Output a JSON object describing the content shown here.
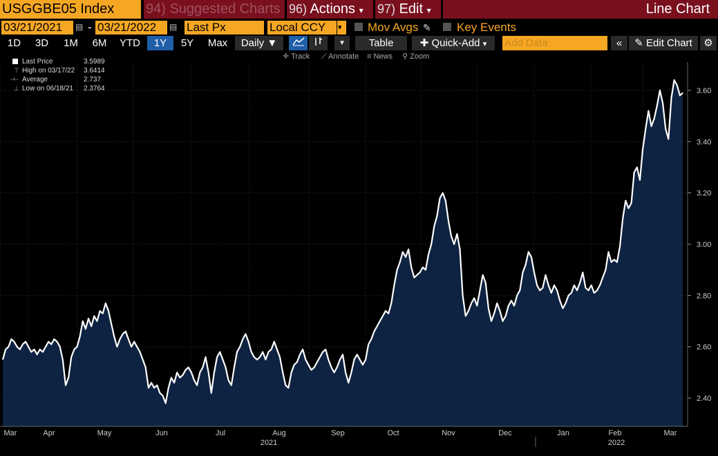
{
  "header": {
    "ticker": "USGGBE05 Index",
    "suggested_num": "94)",
    "suggested": "Suggested Charts",
    "actions_num": "96)",
    "actions": "Actions",
    "edit_num": "97)",
    "edit": "Edit",
    "chart_type": "Line Chart",
    "caret": "▾"
  },
  "controls": {
    "start_date": "03/21/2021",
    "end_date": "03/21/2022",
    "dash": "-",
    "field": "Last Px",
    "currency": "Local CCY",
    "mov_avgs": "Mov Avgs",
    "key_events": "Key Events"
  },
  "toolbar": {
    "periods": [
      "1D",
      "3D",
      "1M",
      "6M",
      "YTD",
      "1Y",
      "5Y",
      "Max"
    ],
    "active_period": "1Y",
    "frequency": "Daily",
    "table": "Table",
    "quick_add": "Quick-Add",
    "add_data_placeholder": "Add Data",
    "edit_chart": "Edit Chart"
  },
  "tools": {
    "track": "Track",
    "annotate": "Annotate",
    "news": "News",
    "zoom": "Zoom"
  },
  "legend": [
    {
      "label": "Last Price",
      "value": "3.5989"
    },
    {
      "label": "High on 03/17/22",
      "value": "3.6414"
    },
    {
      "label": "Average",
      "value": "2.737"
    },
    {
      "label": "Low on 06/18/21",
      "value": "2.3764"
    }
  ],
  "colors": {
    "accent": "#f5a623",
    "header_bg": "#7a0f1e",
    "area_fill": "#0e2342",
    "line": "#ffffff",
    "active_btn": "#1e5fa8"
  },
  "chart_data": {
    "type": "area",
    "title": "",
    "xlabel": "",
    "ylabel": "",
    "x_tick_labels": [
      "Mar",
      "Apr",
      "May",
      "Jun",
      "Jul",
      "Aug",
      "Sep",
      "Oct",
      "Nov",
      "Dec",
      "Jan",
      "Feb",
      "Mar"
    ],
    "x_year_labels": [
      "2021",
      "2022"
    ],
    "y_tick_labels": [
      "2.40",
      "2.60",
      "2.80",
      "3.00",
      "3.20",
      "3.40",
      "3.60"
    ],
    "ylim": [
      2.29,
      3.71
    ],
    "grid": true,
    "legend": "top-left",
    "series": [
      {
        "values": [
          2.55,
          2.59,
          2.6,
          2.63,
          2.62,
          2.6,
          2.59,
          2.61,
          2.62,
          2.6,
          2.58,
          2.59,
          2.57,
          2.59,
          2.58,
          2.6,
          2.62,
          2.61,
          2.63,
          2.62,
          2.6,
          2.55,
          2.45,
          2.48,
          2.56,
          2.59,
          2.6,
          2.64,
          2.7,
          2.67,
          2.71,
          2.68,
          2.72,
          2.7,
          2.74,
          2.73,
          2.77,
          2.74,
          2.69,
          2.64,
          2.6,
          2.63,
          2.65,
          2.66,
          2.63,
          2.6,
          2.62,
          2.6,
          2.58,
          2.55,
          2.52,
          2.44,
          2.46,
          2.44,
          2.45,
          2.42,
          2.41,
          2.38,
          2.44,
          2.48,
          2.46,
          2.5,
          2.48,
          2.49,
          2.51,
          2.52,
          2.5,
          2.47,
          2.45,
          2.5,
          2.52,
          2.56,
          2.5,
          2.42,
          2.5,
          2.56,
          2.58,
          2.55,
          2.52,
          2.47,
          2.45,
          2.52,
          2.58,
          2.6,
          2.63,
          2.65,
          2.62,
          2.58,
          2.56,
          2.55,
          2.56,
          2.58,
          2.55,
          2.58,
          2.59,
          2.62,
          2.59,
          2.56,
          2.5,
          2.45,
          2.44,
          2.5,
          2.53,
          2.54,
          2.57,
          2.59,
          2.55,
          2.53,
          2.51,
          2.52,
          2.54,
          2.56,
          2.58,
          2.59,
          2.55,
          2.52,
          2.5,
          2.52,
          2.55,
          2.57,
          2.5,
          2.46,
          2.5,
          2.55,
          2.57,
          2.55,
          2.53,
          2.55,
          2.61,
          2.63,
          2.66,
          2.68,
          2.7,
          2.72,
          2.74,
          2.73,
          2.77,
          2.84,
          2.9,
          2.93,
          2.97,
          2.95,
          2.98,
          2.91,
          2.87,
          2.88,
          2.89,
          2.91,
          2.9,
          2.96,
          3.0,
          3.07,
          3.11,
          3.18,
          3.2,
          3.17,
          3.09,
          3.03,
          3.0,
          3.04,
          2.98,
          2.8,
          2.72,
          2.74,
          2.77,
          2.79,
          2.76,
          2.82,
          2.88,
          2.85,
          2.75,
          2.7,
          2.73,
          2.77,
          2.74,
          2.7,
          2.72,
          2.76,
          2.78,
          2.76,
          2.8,
          2.82,
          2.89,
          2.92,
          2.97,
          2.95,
          2.89,
          2.84,
          2.82,
          2.83,
          2.88,
          2.84,
          2.81,
          2.84,
          2.82,
          2.78,
          2.75,
          2.77,
          2.8,
          2.81,
          2.84,
          2.82,
          2.85,
          2.89,
          2.83,
          2.82,
          2.84,
          2.81,
          2.82,
          2.84,
          2.87,
          2.9,
          2.97,
          2.93,
          2.94,
          2.93,
          2.99,
          3.1,
          3.17,
          3.14,
          3.16,
          3.28,
          3.3,
          3.25,
          3.37,
          3.45,
          3.52,
          3.46,
          3.49,
          3.54,
          3.6,
          3.55,
          3.45,
          3.41,
          3.57,
          3.64,
          3.62,
          3.58,
          3.59
        ]
      }
    ]
  }
}
